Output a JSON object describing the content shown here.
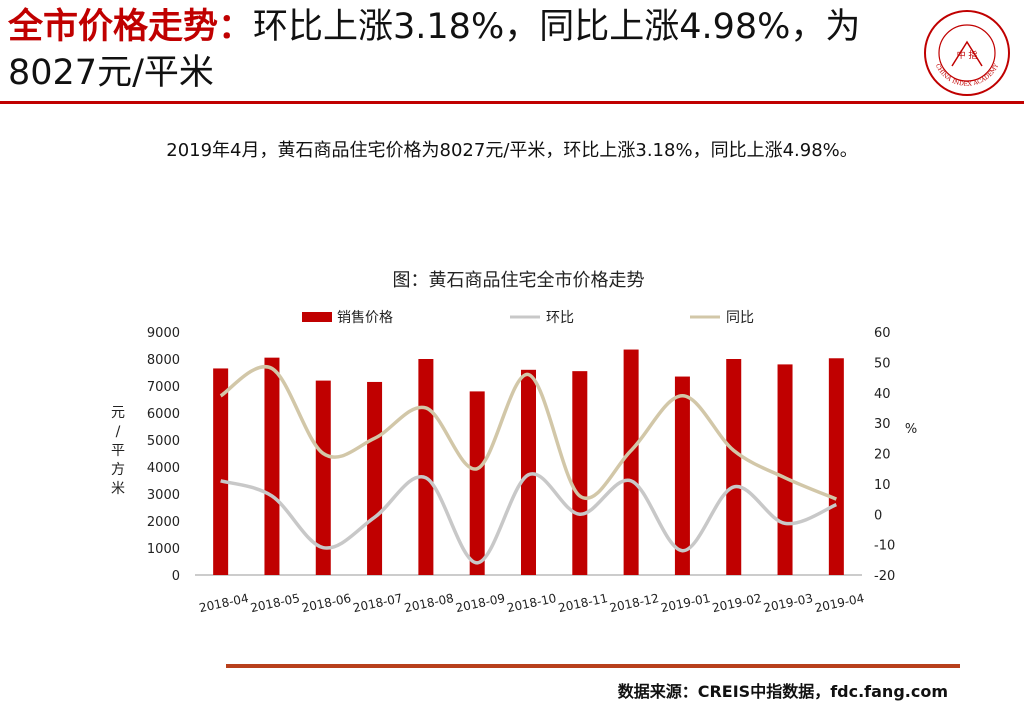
{
  "header": {
    "title_prefix": "全市价格走势：",
    "title_rest": "环比上涨3.18%，同比上涨4.98%，为8027元/平米"
  },
  "logo": {
    "icon": "china-index-academy-seal-icon",
    "center_text": "中 指",
    "ring_text": "CHINA INDEX ACADEMY"
  },
  "summary": "2019年4月，黄石商品住宅价格为8027元/平米，环比上涨3.18%，同比上涨4.98%。",
  "footer": {
    "source": "数据来源：CREIS中指数据，fdc.fang.com"
  },
  "colors": {
    "accent": "#c00000",
    "bar": "#c00000",
    "mom": "#c8c8c8",
    "yoy": "#d2c7a8",
    "rule": "#b8401c"
  },
  "chart_data": {
    "type": "bar",
    "title": "图：黄石商品住宅全市价格走势",
    "categories": [
      "2018-04",
      "2018-05",
      "2018-06",
      "2018-07",
      "2018-08",
      "2018-09",
      "2018-10",
      "2018-11",
      "2018-12",
      "2019-01",
      "2019-02",
      "2019-03",
      "2019-04"
    ],
    "ylabel_left": "元/平方米",
    "ylabel_right": "%",
    "ylim_left": [
      0,
      9000
    ],
    "ylim_right": [
      -20,
      60
    ],
    "yticks_left": [
      "0",
      "1000",
      "2000",
      "3000",
      "4000",
      "5000",
      "6000",
      "7000",
      "8000",
      "9000"
    ],
    "yticks_right": [
      "-20",
      "-10",
      "0",
      "10",
      "20",
      "30",
      "40",
      "50",
      "60"
    ],
    "legend_position": "top",
    "series": [
      {
        "name": "销售价格",
        "type": "bar",
        "axis": "left",
        "values": [
          7650,
          8050,
          7200,
          7150,
          8000,
          6800,
          7600,
          7550,
          8350,
          7350,
          8000,
          7800,
          8027
        ]
      },
      {
        "name": "环比",
        "type": "line",
        "axis": "right",
        "values": [
          11,
          6,
          -11,
          -1,
          12,
          -16,
          13,
          0,
          11,
          -12,
          9,
          -3,
          3.18
        ]
      },
      {
        "name": "同比",
        "type": "line",
        "axis": "right",
        "values": [
          39,
          48,
          20,
          25,
          35,
          15,
          46,
          6,
          21,
          39,
          21,
          12,
          4.98
        ]
      }
    ]
  }
}
